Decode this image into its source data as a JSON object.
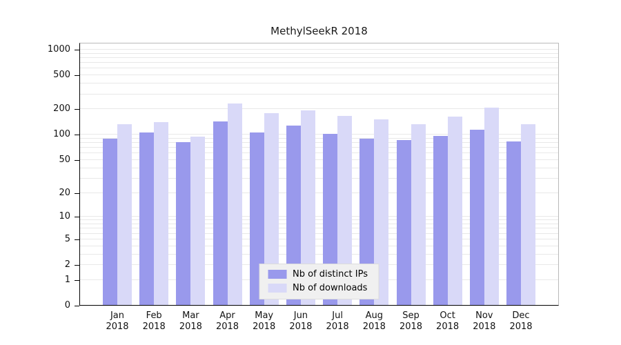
{
  "chart_data": {
    "type": "bar",
    "title": "MethylSeekR 2018",
    "categories": [
      "Jan",
      "Feb",
      "Mar",
      "Apr",
      "May",
      "Jun",
      "Jul",
      "Aug",
      "Sep",
      "Oct",
      "Nov",
      "Dec"
    ],
    "year_label": "2018",
    "series": [
      {
        "name": "Nb of distinct IPs",
        "color": "#9999ec",
        "values": [
          88,
          105,
          80,
          140,
          105,
          125,
          100,
          88,
          85,
          95,
          112,
          82
        ]
      },
      {
        "name": "Nb of downloads",
        "color": "#d9d9f8",
        "values": [
          130,
          138,
          93,
          230,
          175,
          190,
          165,
          150,
          130,
          160,
          205,
          130
        ]
      }
    ],
    "yscale": "log1p",
    "yticks": [
      0,
      1,
      2,
      5,
      10,
      20,
      50,
      100,
      200,
      500,
      1000
    ],
    "ylim": [
      0,
      1200
    ],
    "grid": true,
    "grid_color": "#e8e8e8",
    "legend_position": "bottom-center-inside",
    "legend_background": "#f0f0f0"
  }
}
